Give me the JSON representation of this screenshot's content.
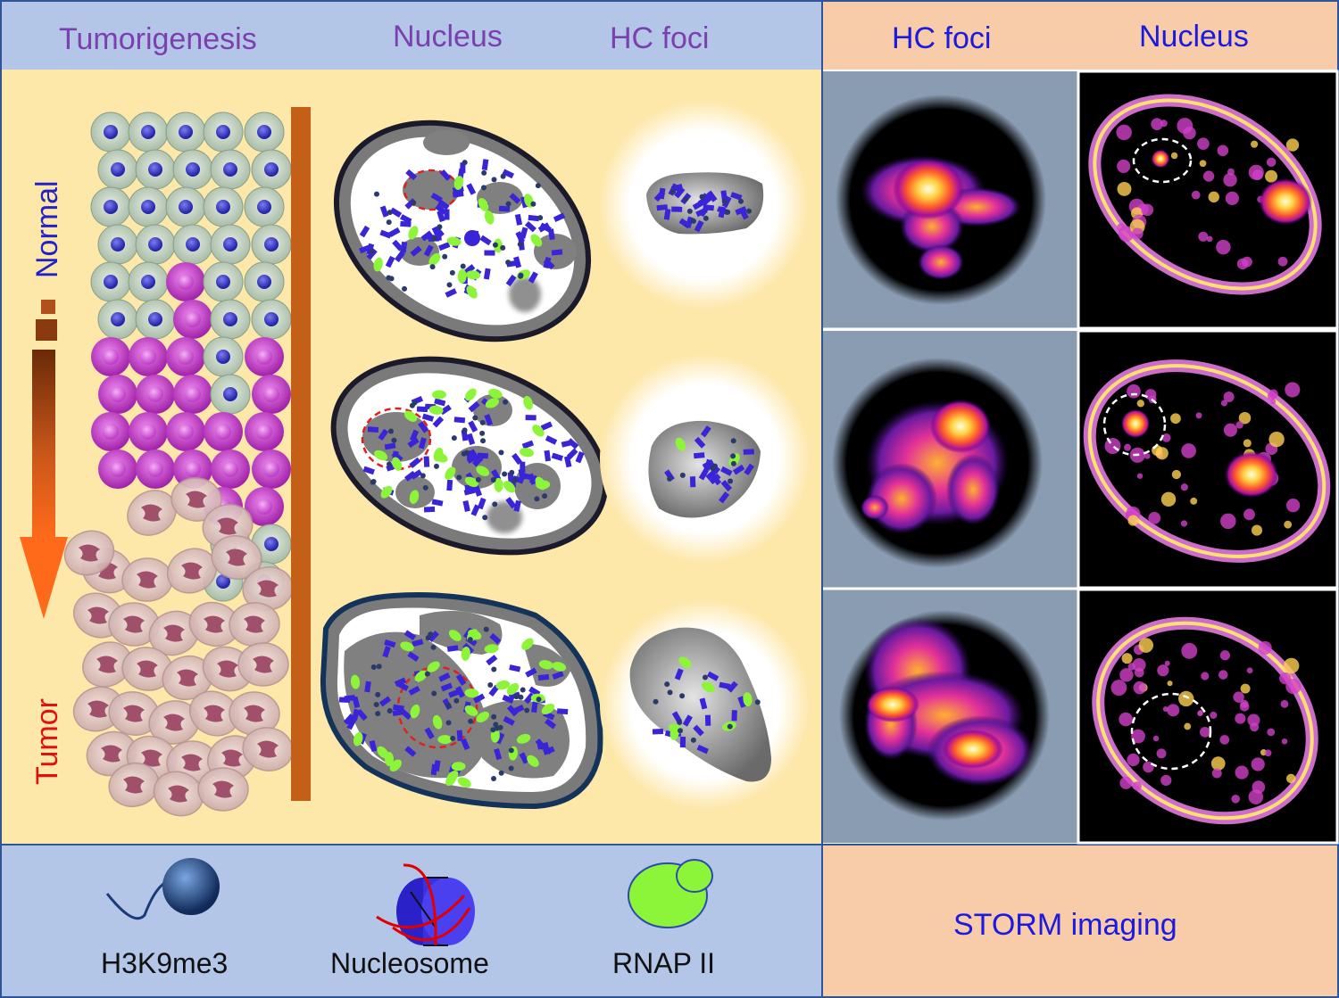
{
  "headers": {
    "left": [
      "Tumorigenesis",
      "Nucleus",
      "HC foci"
    ],
    "right": [
      "HC foci",
      "Nucleus"
    ]
  },
  "axis": {
    "top_label": "Normal",
    "bottom_label": "Tumor"
  },
  "legend": {
    "items": [
      {
        "id": "h3k9me3",
        "label": "H3K9me3"
      },
      {
        "id": "nucleosome",
        "label": "Nucleosome"
      },
      {
        "id": "rnap2",
        "label": "RNAP II"
      }
    ],
    "imaging_label": "STORM imaging"
  },
  "colors": {
    "header_blue_bg": "#b3c6e7",
    "header_peach_bg": "#f8cba9",
    "main_bg": "#fde7a9",
    "header_purple_text": "#7b3fb0",
    "header_blue_text": "#1a1ae0",
    "normal_text": "#2222cc",
    "tumor_text": "#e01010",
    "nucleosome": "#3a24d8",
    "rnap": "#8cf53a",
    "bar": "#c45f18"
  },
  "icons": [
    "h3k9me3-icon",
    "nucleosome-icon",
    "rnap2-icon",
    "progression-arrow-icon"
  ]
}
